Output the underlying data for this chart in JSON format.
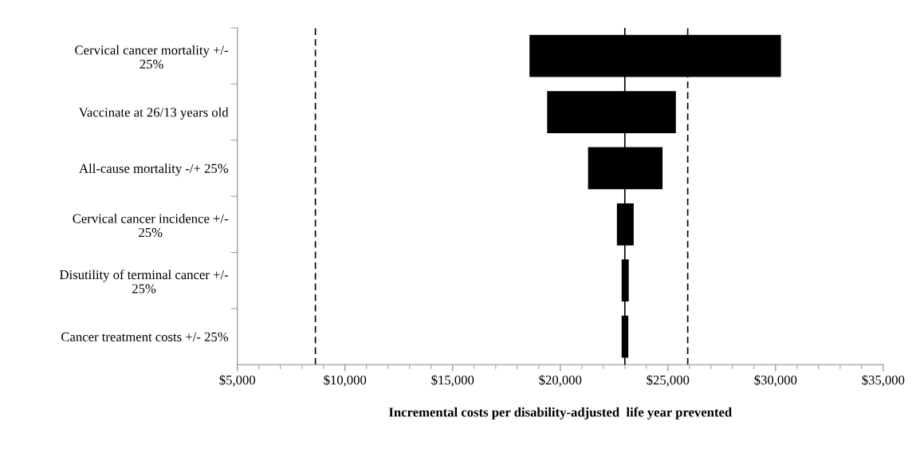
{
  "chart_data": {
    "type": "bar",
    "orientation": "horizontal",
    "categories": [
      "Cervical cancer mortality +/-\n25%",
      "Vaccinate at 26/13 years old",
      "All-cause mortality -/+ 25%",
      "Cervical cancer incidence +/-\n25%",
      "Disutility of terminal cancer +/-\n25%",
      "Cancer treatment costs +/- 25%"
    ],
    "base": [
      18570,
      19390,
      21290,
      22630,
      22850,
      22850
    ],
    "values": [
      11680,
      5980,
      3460,
      780,
      330,
      310
    ],
    "color": "#000000",
    "xlabel": "Incremental costs per disability-adjusted  life year prevented",
    "xlim": [
      5000,
      35000
    ],
    "xticks": [
      {
        "value": 5000,
        "label": "$5,000"
      },
      {
        "value": 10000,
        "label": "$10,000"
      },
      {
        "value": 15000,
        "label": "$15,000"
      },
      {
        "value": 20000,
        "label": "$20,000"
      },
      {
        "value": 25000,
        "label": "$25,000"
      },
      {
        "value": 30000,
        "label": "$30,000"
      },
      {
        "value": 35000,
        "label": "$35,000"
      }
    ],
    "ref_lines": [
      {
        "axis": "x",
        "value": 23000,
        "label": null,
        "color": "#000000",
        "line_style": "solid"
      },
      {
        "axis": "x",
        "value": 8625,
        "label": null,
        "color": "#000000",
        "line_style": "dashed"
      },
      {
        "axis": "x",
        "value": 25920,
        "label": null,
        "color": "#000000",
        "line_style": "dashed"
      }
    ],
    "grid": false,
    "legend": false
  }
}
